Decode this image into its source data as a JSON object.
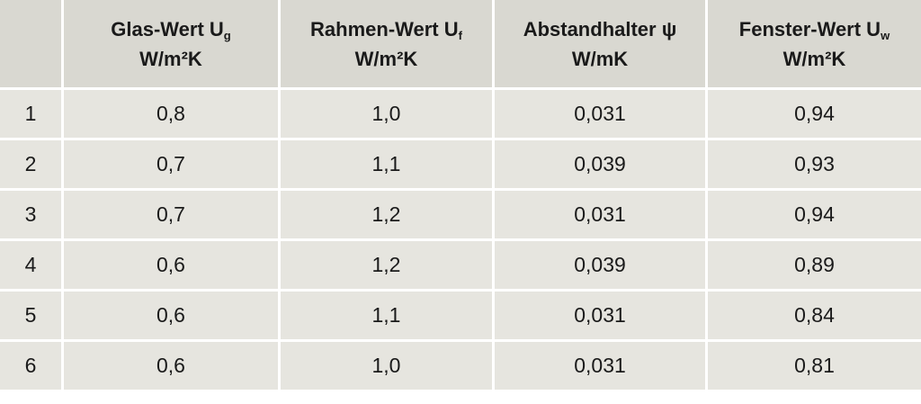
{
  "table": {
    "header": [
      {
        "label": "Glas-Wert U",
        "subscript": "g",
        "unit": "W/m²K"
      },
      {
        "label": "Rahmen-Wert U",
        "subscript": "f",
        "unit": "W/m²K"
      },
      {
        "label": "Abstandhalter ψ",
        "unit": "W/mK"
      },
      {
        "label": "Fenster-Wert U",
        "subscript": "w",
        "unit": "W/m²K"
      }
    ],
    "rows": [
      [
        "1",
        "0,8",
        "1,0",
        "0,031",
        "0,94"
      ],
      [
        "2",
        "0,7",
        "1,1",
        "0,039",
        "0,93"
      ],
      [
        "3",
        "0,7",
        "1,2",
        "0,031",
        "0,94"
      ],
      [
        "4",
        "0,6",
        "1,2",
        "0,039",
        "0,89"
      ],
      [
        "5",
        "0,6",
        "1,1",
        "0,031",
        "0,84"
      ],
      [
        "6",
        "0,6",
        "1,0",
        "0,031",
        "0,81"
      ]
    ]
  }
}
